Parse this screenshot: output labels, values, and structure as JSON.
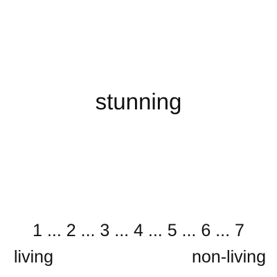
{
  "stimulus": {
    "word": "stunning"
  },
  "scale": {
    "points": [
      "1",
      "2",
      "3",
      "4",
      "5",
      "6",
      "7"
    ],
    "separator": " ... ",
    "left_anchor": "living",
    "right_anchor": "non-living"
  },
  "colors": {
    "background": "#ffffff",
    "text": "#111111"
  }
}
